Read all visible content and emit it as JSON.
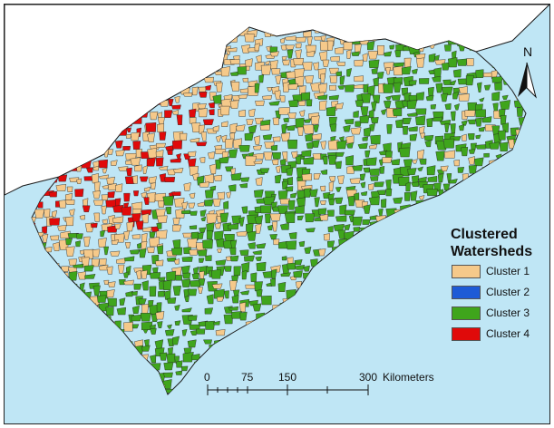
{
  "legend": {
    "title_line1": "Clustered",
    "title_line2": "Watersheds",
    "items": [
      {
        "label": "Cluster 1",
        "color": "#F5C98A"
      },
      {
        "label": "Cluster 2",
        "color": "#1E5BD6"
      },
      {
        "label": "Cluster 3",
        "color": "#3FA51C"
      },
      {
        "label": "Cluster 4",
        "color": "#E00A0A"
      }
    ]
  },
  "scale_bar": {
    "ticks": [
      "0",
      "75",
      "150",
      "300"
    ],
    "unit": "Kilometers"
  },
  "north_arrow": {
    "label": "N"
  },
  "colors": {
    "water": "#BFE6F5",
    "land_background": "#ffffff",
    "boundary": "#1a1a1a"
  }
}
